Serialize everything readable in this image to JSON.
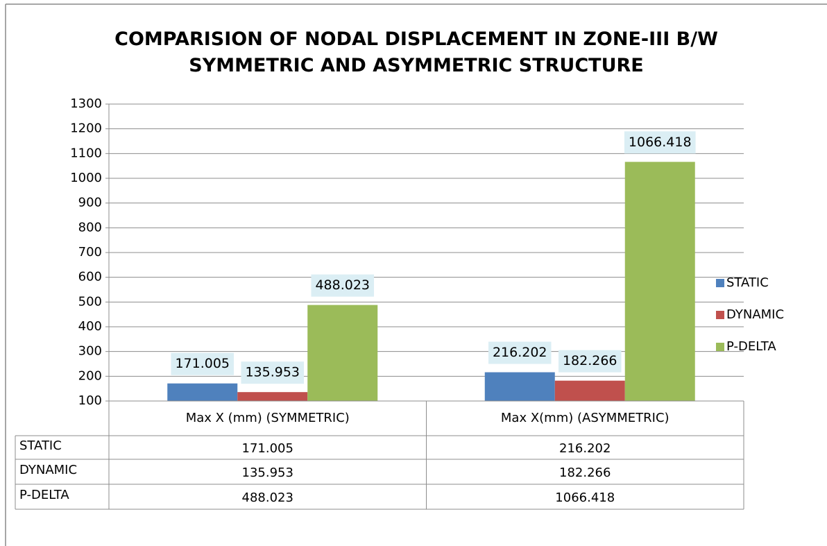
{
  "chart_data": {
    "type": "bar",
    "title": "COMPARISION OF NODAL DISPLACEMENT IN ZONE-III B/W SYMMETRIC AND ASYMMETRIC STRUCTURE",
    "categories": [
      "Max X (mm) (SYMMETRIC)",
      "Max X(mm) (ASYMMETRIC)"
    ],
    "series": [
      {
        "name": "STATIC",
        "color": "#4f81bd",
        "values": [
          171.005,
          216.202
        ]
      },
      {
        "name": "DYNAMIC",
        "color": "#c0504d",
        "values": [
          135.953,
          182.266
        ]
      },
      {
        "name": "P-DELTA",
        "color": "#9bbb59",
        "values": [
          488.023,
          1066.418
        ]
      }
    ],
    "ylim": [
      100,
      1300
    ],
    "yticks": [
      100,
      200,
      300,
      400,
      500,
      600,
      700,
      800,
      900,
      1000,
      1100,
      1200,
      1300
    ],
    "grid": true,
    "legend": "right",
    "data_table": true
  }
}
